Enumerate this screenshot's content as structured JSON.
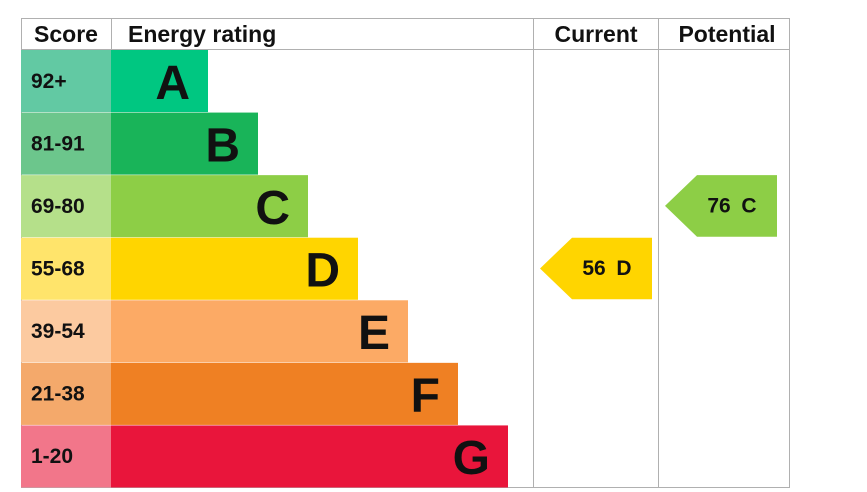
{
  "header": {
    "score": "Score",
    "energy_rating": "Energy rating",
    "current": "Current",
    "potential": "Potential"
  },
  "rows": [
    {
      "score": "92+",
      "letter": "A",
      "color": "#00c781",
      "score_color": "#62c9a3"
    },
    {
      "score": "81-91",
      "letter": "B",
      "color": "#19b459",
      "score_color": "#6cc68c"
    },
    {
      "score": "69-80",
      "letter": "C",
      "color": "#8dce46",
      "score_color": "#b5e08a"
    },
    {
      "score": "55-68",
      "letter": "D",
      "color": "#ffd500",
      "score_color": "#ffe46b"
    },
    {
      "score": "39-54",
      "letter": "E",
      "color": "#fcaa65",
      "score_color": "#fccaa0"
    },
    {
      "score": "21-38",
      "letter": "F",
      "color": "#ef8023",
      "score_color": "#f4a96b"
    },
    {
      "score": "1-20",
      "letter": "G",
      "color": "#e9153b",
      "score_color": "#f2768a"
    }
  ],
  "current": {
    "value": 56,
    "rating": "D"
  },
  "potential": {
    "value": 76,
    "rating": "C"
  }
}
